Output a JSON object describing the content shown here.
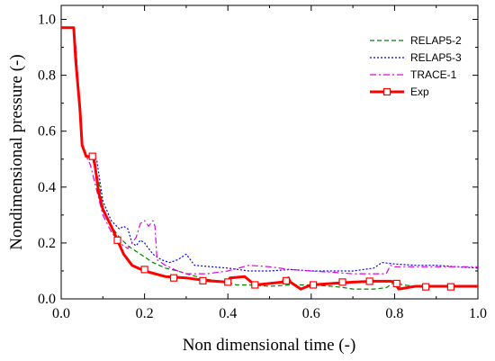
{
  "chart_data": {
    "type": "line",
    "xlabel": "Non dimensional time (-)",
    "ylabel": "Nondimensional pressure (-)",
    "xlim": [
      0.0,
      1.0
    ],
    "ylim": [
      0.0,
      1.05
    ],
    "xticks": [
      "0.0",
      "0.2",
      "0.4",
      "0.6",
      "0.8",
      "1.0"
    ],
    "yticks": [
      "0.0",
      "0.2",
      "0.4",
      "0.6",
      "0.8",
      "1.0"
    ],
    "grid": false,
    "legend_position": "top-right",
    "series": [
      {
        "name": "RELAP5-2",
        "color": "#008000",
        "style": "dashed",
        "x": [
          0.0,
          0.03,
          0.035,
          0.045,
          0.05,
          0.06,
          0.075,
          0.09,
          0.1,
          0.12,
          0.14,
          0.16,
          0.18,
          0.2,
          0.22,
          0.25,
          0.28,
          0.3,
          0.35,
          0.4,
          0.42,
          0.45,
          0.5,
          0.55,
          0.6,
          0.65,
          0.68,
          0.7,
          0.75,
          0.78,
          0.8,
          0.82,
          0.85,
          0.9,
          0.95,
          1.0
        ],
        "y": [
          0.97,
          0.97,
          0.9,
          0.68,
          0.55,
          0.51,
          0.5,
          0.42,
          0.33,
          0.26,
          0.22,
          0.19,
          0.17,
          0.15,
          0.13,
          0.11,
          0.1,
          0.09,
          0.07,
          0.06,
          0.05,
          0.05,
          0.045,
          0.05,
          0.05,
          0.045,
          0.04,
          0.035,
          0.035,
          0.04,
          0.06,
          0.05,
          0.045,
          0.045,
          0.045,
          0.045
        ]
      },
      {
        "name": "RELAP5-3",
        "color": "#0000ff",
        "style": "dotted",
        "x": [
          0.0,
          0.03,
          0.035,
          0.045,
          0.05,
          0.06,
          0.075,
          0.085,
          0.09,
          0.1,
          0.12,
          0.14,
          0.15,
          0.16,
          0.17,
          0.18,
          0.19,
          0.2,
          0.22,
          0.24,
          0.26,
          0.28,
          0.3,
          0.32,
          0.36,
          0.4,
          0.45,
          0.5,
          0.55,
          0.6,
          0.65,
          0.7,
          0.75,
          0.77,
          0.8,
          0.85,
          0.9,
          0.95,
          1.0
        ],
        "y": [
          0.97,
          0.97,
          0.9,
          0.68,
          0.55,
          0.51,
          0.5,
          0.5,
          0.45,
          0.35,
          0.28,
          0.25,
          0.26,
          0.25,
          0.2,
          0.19,
          0.21,
          0.2,
          0.16,
          0.14,
          0.13,
          0.14,
          0.16,
          0.12,
          0.115,
          0.11,
          0.1,
          0.1,
          0.105,
          0.1,
          0.1,
          0.1,
          0.11,
          0.13,
          0.125,
          0.12,
          0.12,
          0.115,
          0.11
        ]
      },
      {
        "name": "TRACE-1",
        "color": "#e000e0",
        "style": "dashdot",
        "x": [
          0.0,
          0.03,
          0.035,
          0.045,
          0.05,
          0.06,
          0.07,
          0.08,
          0.1,
          0.12,
          0.14,
          0.16,
          0.18,
          0.19,
          0.2,
          0.21,
          0.22,
          0.225,
          0.23,
          0.25,
          0.28,
          0.3,
          0.35,
          0.4,
          0.45,
          0.5,
          0.55,
          0.6,
          0.65,
          0.7,
          0.75,
          0.78,
          0.79,
          0.8,
          0.9,
          1.0
        ],
        "y": [
          0.97,
          0.97,
          0.9,
          0.68,
          0.55,
          0.51,
          0.48,
          0.42,
          0.3,
          0.24,
          0.2,
          0.18,
          0.22,
          0.27,
          0.28,
          0.26,
          0.28,
          0.26,
          0.14,
          0.12,
          0.1,
          0.09,
          0.09,
          0.1,
          0.12,
          0.115,
          0.105,
          0.1,
          0.095,
          0.09,
          0.09,
          0.09,
          0.12,
          0.115,
          0.115,
          0.115
        ]
      },
      {
        "name": "Exp",
        "color": "#ff0000",
        "style": "solid",
        "marker": "square",
        "x": [
          0.0,
          0.03,
          0.035,
          0.045,
          0.05,
          0.06,
          0.065,
          0.075,
          0.08,
          0.09,
          0.1,
          0.12,
          0.135,
          0.15,
          0.17,
          0.2,
          0.25,
          0.3,
          0.35,
          0.4,
          0.405,
          0.44,
          0.465,
          0.5,
          0.53,
          0.545,
          0.55,
          0.575,
          0.6,
          0.65,
          0.7,
          0.75,
          0.79,
          0.8,
          0.81,
          0.85,
          0.9,
          0.95,
          1.0
        ],
        "y": [
          0.97,
          0.97,
          0.85,
          0.68,
          0.55,
          0.51,
          0.51,
          0.51,
          0.49,
          0.38,
          0.32,
          0.26,
          0.21,
          0.16,
          0.12,
          0.1,
          0.08,
          0.075,
          0.065,
          0.06,
          0.075,
          0.08,
          0.05,
          0.055,
          0.06,
          0.075,
          0.06,
          0.035,
          0.05,
          0.055,
          0.06,
          0.063,
          0.063,
          0.06,
          0.035,
          0.045,
          0.045,
          0.045,
          0.045
        ],
        "marker_x": [
          0.075,
          0.135,
          0.2,
          0.27,
          0.34,
          0.4,
          0.465,
          0.54,
          0.605,
          0.675,
          0.74,
          0.805,
          0.875,
          0.935
        ],
        "marker_y": [
          0.51,
          0.21,
          0.105,
          0.075,
          0.065,
          0.06,
          0.05,
          0.065,
          0.05,
          0.06,
          0.063,
          0.055,
          0.043,
          0.043
        ]
      }
    ]
  }
}
